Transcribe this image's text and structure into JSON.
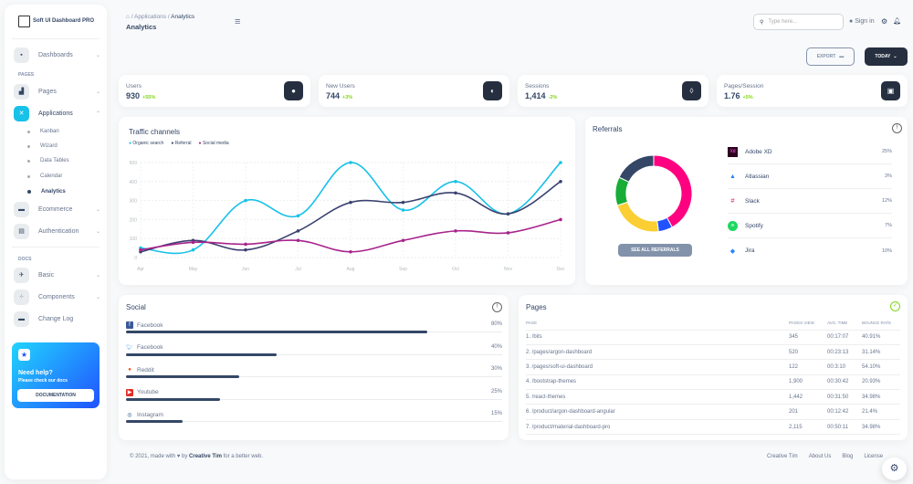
{
  "brand": "Soft UI Dashboard PRO",
  "sidebar": {
    "items": [
      {
        "label": "Dashboards",
        "icon": "shop-icon"
      }
    ],
    "pages_label": "PAGES",
    "pages": [
      {
        "label": "Pages",
        "icon": "office-icon"
      },
      {
        "label": "Applications",
        "icon": "tools-icon",
        "active": true
      }
    ],
    "sub": [
      "Kanban",
      "Wizard",
      "Data Tables",
      "Calendar",
      "Analytics"
    ],
    "active_sub": "Analytics",
    "more": [
      {
        "label": "Ecommerce"
      },
      {
        "label": "Authentication"
      }
    ],
    "docs_label": "DOCS",
    "docs": [
      {
        "label": "Basic"
      },
      {
        "label": "Components"
      },
      {
        "label": "Change Log"
      }
    ],
    "help": {
      "title": "Need help?",
      "subtitle": "Please check our docs",
      "button": "DOCUMENTATION"
    }
  },
  "header": {
    "breadcrumb": [
      "Applications",
      "Analytics"
    ],
    "title": "Analytics",
    "search_placeholder": "Type here...",
    "sign_in": "Sign in"
  },
  "actions": {
    "export": "EXPORT",
    "today": "TODAY"
  },
  "stats": [
    {
      "label": "Users",
      "value": "930",
      "change": "+55%",
      "icon": "globe-icon"
    },
    {
      "label": "New Users",
      "value": "744",
      "change": "+3%",
      "icon": "world-icon"
    },
    {
      "label": "Sessions",
      "value": "1,414",
      "change": "-2%",
      "icon": "watch-icon"
    },
    {
      "label": "Pages/Session",
      "value": "1.76",
      "change": "+5%",
      "icon": "image-icon"
    }
  ],
  "chart_data": {
    "type": "line",
    "title": "Traffic channels",
    "categories": [
      "Apr",
      "May",
      "Jun",
      "Jul",
      "Aug",
      "Sep",
      "Oct",
      "Nov",
      "Dec"
    ],
    "yticks": [
      0,
      100,
      200,
      300,
      400,
      500
    ],
    "ylim": [
      0,
      500
    ],
    "grid": true,
    "legend": "top-left",
    "series": [
      {
        "name": "Organic search",
        "color": "#17c1e8",
        "values": [
          50,
          40,
          300,
          220,
          500,
          250,
          400,
          230,
          500
        ]
      },
      {
        "name": "Referral",
        "color": "#3a416f",
        "values": [
          30,
          90,
          40,
          140,
          290,
          290,
          340,
          230,
          400
        ]
      },
      {
        "name": "Social media",
        "color": "#a8238c",
        "values": [
          40,
          80,
          70,
          90,
          30,
          90,
          140,
          130,
          200
        ]
      }
    ]
  },
  "referrals": {
    "title": "Referrals",
    "button": "SEE ALL REFERRALS",
    "donut": [
      {
        "color": "#ff0080",
        "value": 42
      },
      {
        "color": "#2152ff",
        "value": 6
      },
      {
        "color": "#fbcf33",
        "value": 22
      },
      {
        "color": "#17ad37",
        "value": 12
      },
      {
        "color": "#344767",
        "value": 18
      }
    ],
    "items": [
      {
        "name": "Adobe XD",
        "pct": "25%"
      },
      {
        "name": "Atlassian",
        "pct": "3%"
      },
      {
        "name": "Slack",
        "pct": "12%"
      },
      {
        "name": "Spotify",
        "pct": "7%"
      },
      {
        "name": "Jira",
        "pct": "10%"
      }
    ]
  },
  "social": {
    "title": "Social",
    "items": [
      {
        "name": "Facebook",
        "pct": "80%",
        "value": 80,
        "icon": "facebook-icon"
      },
      {
        "name": "Facebook",
        "pct": "40%",
        "value": 40,
        "icon": "twitter-icon"
      },
      {
        "name": "Reddit",
        "pct": "30%",
        "value": 30,
        "icon": "reddit-icon"
      },
      {
        "name": "Youtube",
        "pct": "25%",
        "value": 25,
        "icon": "youtube-icon"
      },
      {
        "name": "Instagram",
        "pct": "15%",
        "value": 15,
        "icon": "instagram-icon"
      }
    ]
  },
  "pages": {
    "title": "Pages",
    "columns": [
      "PAGE",
      "PAGES VIEW",
      "AVG. TIME",
      "BOUNCE RATE"
    ],
    "rows": [
      [
        "1. /bits",
        "345",
        "00:17:07",
        "40.91%"
      ],
      [
        "2. /pages/argon-dashboard",
        "520",
        "00:23:13",
        "31.14%"
      ],
      [
        "3. /pages/soft-ui-dashboard",
        "122",
        "00:3:10",
        "54.10%"
      ],
      [
        "4. /bootstrap-themes",
        "1,900",
        "00:30:42",
        "20.93%"
      ],
      [
        "5. /react-themes",
        "1,442",
        "00:31:50",
        "34.98%"
      ],
      [
        "6. /product/argon-dashboard-angular",
        "201",
        "00:12:42",
        "21.4%"
      ],
      [
        "7. /product/material-dashboard-pro",
        "2,115",
        "00:50:11",
        "34.98%"
      ]
    ]
  },
  "footer": {
    "prefix": "© 2021, made with",
    "by": "by",
    "author": "Creative Tim",
    "suffix": "for a better web.",
    "links": [
      "Creative Tim",
      "About Us",
      "Blog",
      "License"
    ]
  }
}
